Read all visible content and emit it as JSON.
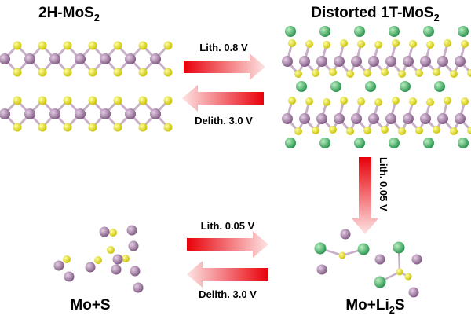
{
  "structures": [
    {
      "label": [
        {
          "t": "2H-MoS"
        },
        {
          "t": "2",
          "sub": true
        }
      ]
    },
    {
      "label": [
        {
          "t": "Distorted 1T-MoS"
        },
        {
          "t": "2",
          "sub": true
        }
      ]
    },
    {
      "label": [
        {
          "t": "Mo+S"
        }
      ]
    },
    {
      "label": [
        {
          "t": "Mo+Li"
        },
        {
          "t": "2",
          "sub": true
        },
        {
          "t": "S"
        }
      ]
    }
  ],
  "arrows": [
    {
      "label": "Lith. 0.8 V"
    },
    {
      "label": "Delith. 3.0 V"
    },
    {
      "label": "Lith. 0.05 V"
    },
    {
      "label": "Lith. 0.05 V"
    },
    {
      "label": "Delith. 3.0 V"
    }
  ]
}
